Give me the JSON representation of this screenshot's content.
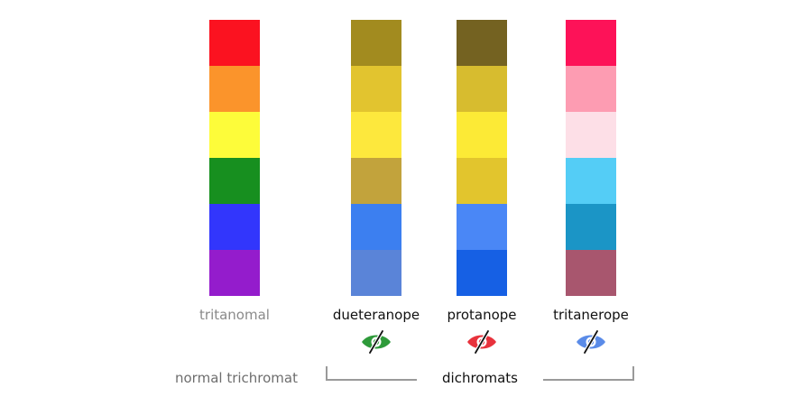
{
  "columns": [
    {
      "label": "tritanomal",
      "swatches": [
        "#fb1220",
        "#fb942b",
        "#fdfc3a",
        "#178f1f",
        "#3236fc",
        "#941ccc"
      ]
    },
    {
      "label": "dueteranope",
      "icon": "eye-slash-icon",
      "icon_color": "#2e9a3a",
      "swatches": [
        "#a28b1f",
        "#e2c42f",
        "#fde83d",
        "#c2a33c",
        "#3c7ff0",
        "#5a84d8"
      ]
    },
    {
      "label": "protanope",
      "icon": "eye-slash-icon",
      "icon_color": "#e8323c",
      "swatches": [
        "#746221",
        "#d7bc2f",
        "#fcea36",
        "#e2c52d",
        "#4a87f6",
        "#1660e4"
      ]
    },
    {
      "label": "tritanerope",
      "icon": "eye-slash-icon",
      "icon_color": "#5a8be8",
      "swatches": [
        "#fd1258",
        "#fd9cb2",
        "#fddfe7",
        "#54cdf6",
        "#1b95c6",
        "#a8566e"
      ]
    }
  ],
  "groups": {
    "normal": "normal trichromat",
    "dichromats": "dichromats"
  }
}
